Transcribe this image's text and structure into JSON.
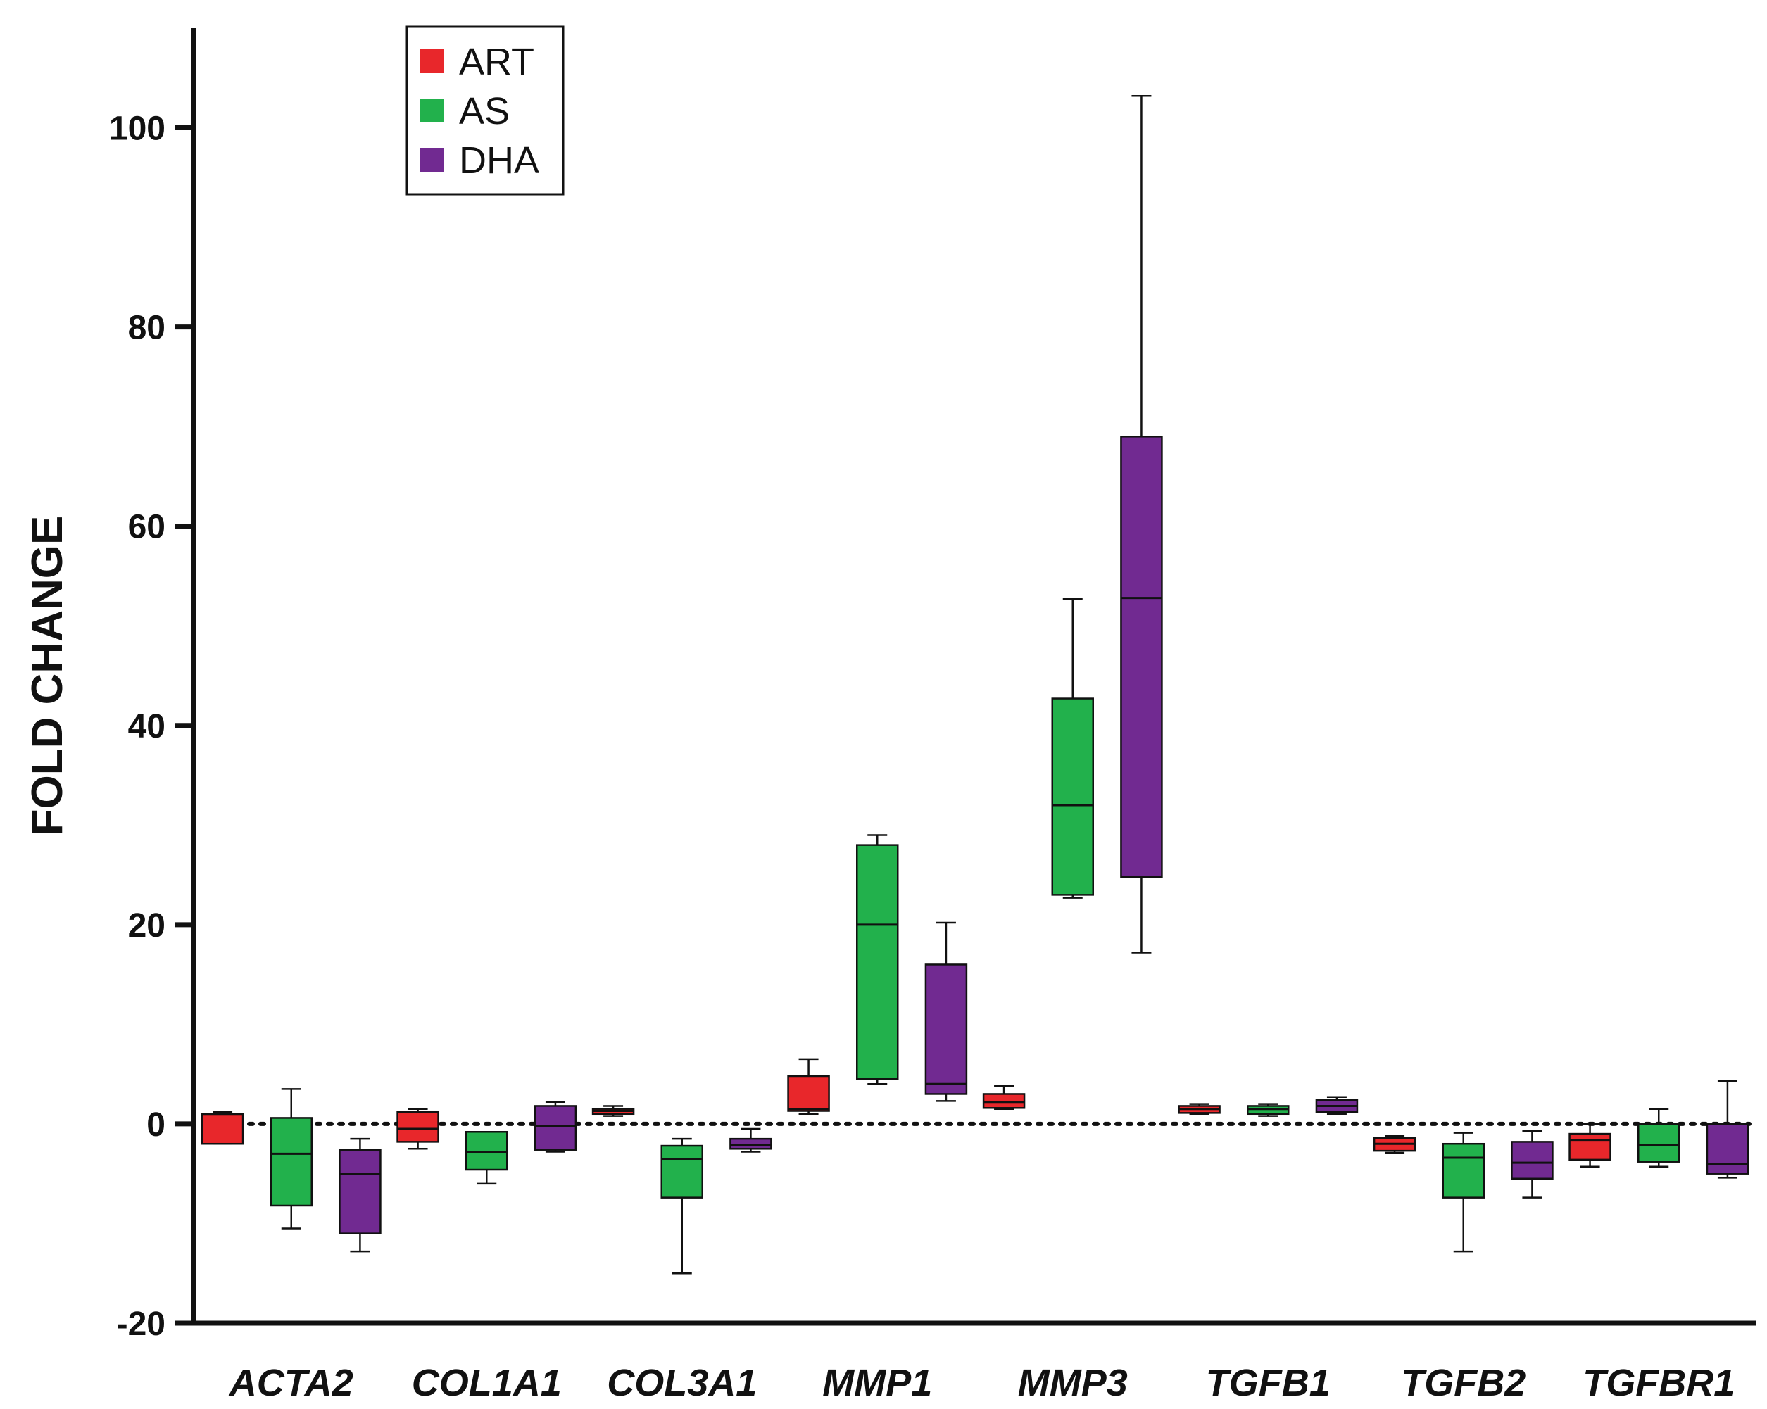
{
  "chart_data": {
    "type": "box",
    "title": "",
    "ylabel": "FOLD CHANGE",
    "xlabel": "",
    "ylim": [
      -20,
      110
    ],
    "yticks": [
      -20,
      0,
      20,
      40,
      60,
      80,
      100
    ],
    "ytick_labels": [
      "-20",
      "0",
      "20",
      "40",
      "60",
      "80",
      "100"
    ],
    "reference_line": 0,
    "legend_position": "top-left",
    "categories": [
      "ACTA2",
      "COL1A1",
      "COL3A1",
      "MMP1",
      "MMP3",
      "TGFB1",
      "TGFB2",
      "TGFBR1"
    ],
    "series": [
      {
        "name": "ART",
        "color": "#e8272b",
        "boxes": [
          {
            "min": -2.0,
            "q1": -2.0,
            "median": 1.0,
            "q3": 1.0,
            "max": 1.2
          },
          {
            "min": -2.5,
            "q1": -1.8,
            "median": -0.5,
            "q3": 1.2,
            "max": 1.5
          },
          {
            "min": 0.8,
            "q1": 1.0,
            "median": 1.3,
            "q3": 1.5,
            "max": 1.8
          },
          {
            "min": 1.0,
            "q1": 1.3,
            "median": 1.5,
            "q3": 4.8,
            "max": 6.5
          },
          {
            "min": 1.5,
            "q1": 1.6,
            "median": 2.2,
            "q3": 3.0,
            "max": 3.8
          },
          {
            "min": 1.0,
            "q1": 1.1,
            "median": 1.5,
            "q3": 1.8,
            "max": 2.0
          },
          {
            "min": -2.9,
            "q1": -2.7,
            "median": -2.0,
            "q3": -1.4,
            "max": -1.2
          },
          {
            "min": -4.3,
            "q1": -3.6,
            "median": -1.6,
            "q3": -1.0,
            "max": 0.0
          }
        ]
      },
      {
        "name": "AS",
        "color": "#22b14c",
        "boxes": [
          {
            "min": -10.5,
            "q1": -8.2,
            "median": -3.0,
            "q3": 0.6,
            "max": 3.5
          },
          {
            "min": -6.0,
            "q1": -4.6,
            "median": -2.8,
            "q3": -0.8,
            "max": -0.8
          },
          {
            "min": -15.0,
            "q1": -7.4,
            "median": -3.5,
            "q3": -2.2,
            "max": -1.5
          },
          {
            "min": 4.0,
            "q1": 4.5,
            "median": 20.0,
            "q3": 28.0,
            "max": 29.0
          },
          {
            "min": 22.7,
            "q1": 23.0,
            "median": 32.0,
            "q3": 42.7,
            "max": 52.7
          },
          {
            "min": 0.8,
            "q1": 1.0,
            "median": 1.5,
            "q3": 1.8,
            "max": 2.0
          },
          {
            "min": -12.8,
            "q1": -7.4,
            "median": -3.4,
            "q3": -2.0,
            "max": -0.9
          },
          {
            "min": -4.3,
            "q1": -3.8,
            "median": -2.1,
            "q3": 0.0,
            "max": 1.5
          }
        ]
      },
      {
        "name": "DHA",
        "color": "#712a91",
        "boxes": [
          {
            "min": -12.8,
            "q1": -11.0,
            "median": -5.0,
            "q3": -2.6,
            "max": -1.5
          },
          {
            "min": -2.8,
            "q1": -2.6,
            "median": -0.2,
            "q3": 1.8,
            "max": 2.2
          },
          {
            "min": -2.8,
            "q1": -2.5,
            "median": -2.1,
            "q3": -1.5,
            "max": -0.5
          },
          {
            "min": 2.3,
            "q1": 3.0,
            "median": 4.0,
            "q3": 16.0,
            "max": 20.2
          },
          {
            "min": 17.2,
            "q1": 24.8,
            "median": 52.8,
            "q3": 69.0,
            "max": 103.2
          },
          {
            "min": 1.0,
            "q1": 1.2,
            "median": 1.8,
            "q3": 2.4,
            "max": 2.7
          },
          {
            "min": -7.4,
            "q1": -5.5,
            "median": -3.9,
            "q3": -1.8,
            "max": -0.7
          },
          {
            "min": -5.4,
            "q1": -5.0,
            "median": -4.0,
            "q3": 0.0,
            "max": 4.3
          }
        ]
      }
    ]
  }
}
